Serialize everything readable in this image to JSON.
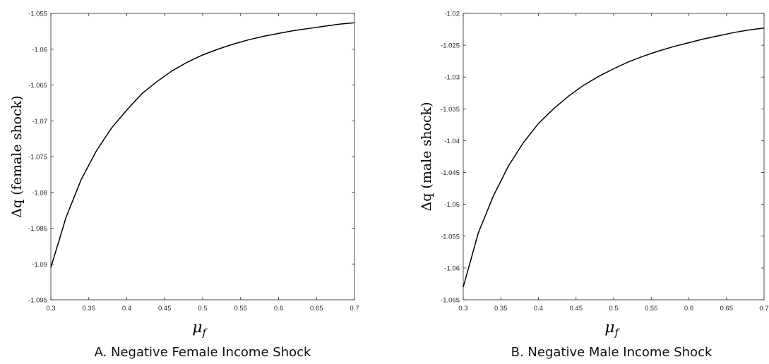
{
  "chart_data": [
    {
      "type": "line",
      "caption": "A. Negative Female Income Shock",
      "xlabel": "μ",
      "xlabel_sub": "f",
      "ylabel": "Δq (female shock)",
      "xlim": [
        0.3,
        0.7
      ],
      "ylim": [
        -1.095,
        -1.055
      ],
      "xticks": [
        0.3,
        0.35,
        0.4,
        0.45,
        0.5,
        0.55,
        0.6,
        0.65,
        0.7
      ],
      "xtick_labels": [
        "0.3",
        "0.35",
        "0.4",
        "0.45",
        "0.5",
        "0.55",
        "0.6",
        "0.65",
        "0.7"
      ],
      "yticks": [
        -1.095,
        -1.09,
        -1.085,
        -1.08,
        -1.075,
        -1.07,
        -1.065,
        -1.06,
        -1.055
      ],
      "ytick_labels": [
        "-1.095",
        "-1.09",
        "-1.085",
        "-1.08",
        "-1.075",
        "-1.07",
        "-1.065",
        "-1.06",
        "-1.055"
      ],
      "grid": false,
      "color": "#000000",
      "series": [
        {
          "x": [
            0.3,
            0.32,
            0.34,
            0.36,
            0.38,
            0.4,
            0.42,
            0.44,
            0.46,
            0.48,
            0.5,
            0.52,
            0.54,
            0.56,
            0.58,
            0.6,
            0.62,
            0.64,
            0.66,
            0.68,
            0.7
          ],
          "y": [
            -1.0905,
            -1.0835,
            -1.0782,
            -1.0742,
            -1.071,
            -1.0685,
            -1.0662,
            -1.0645,
            -1.063,
            -1.0618,
            -1.0608,
            -1.06,
            -1.0593,
            -1.0587,
            -1.0582,
            -1.0578,
            -1.0574,
            -1.0571,
            -1.0568,
            -1.0565,
            -1.0563
          ]
        }
      ]
    },
    {
      "type": "line",
      "caption": "B. Negative Male Income Shock",
      "xlabel": "μ",
      "xlabel_sub": "f",
      "ylabel": "Δq (male shock)",
      "xlim": [
        0.3,
        0.7
      ],
      "ylim": [
        -1.065,
        -1.02
      ],
      "xticks": [
        0.3,
        0.35,
        0.4,
        0.45,
        0.5,
        0.55,
        0.6,
        0.65,
        0.7
      ],
      "xtick_labels": [
        "0.3",
        "0.35",
        "0.4",
        "0.45",
        "0.5",
        "0.55",
        "0.6",
        "0.65",
        "0.7"
      ],
      "yticks": [
        -1.065,
        -1.06,
        -1.055,
        -1.05,
        -1.045,
        -1.04,
        -1.035,
        -1.03,
        -1.025,
        -1.02
      ],
      "ytick_labels": [
        "-1.065",
        "-1.06",
        "-1.055",
        "-1.05",
        "-1.045",
        "-1.04",
        "-1.035",
        "-1.03",
        "-1.025",
        "-1.02"
      ],
      "grid": false,
      "color": "#000000",
      "series": [
        {
          "x": [
            0.3,
            0.32,
            0.34,
            0.36,
            0.38,
            0.4,
            0.42,
            0.44,
            0.46,
            0.48,
            0.5,
            0.52,
            0.54,
            0.56,
            0.58,
            0.6,
            0.62,
            0.64,
            0.66,
            0.68,
            0.7
          ],
          "y": [
            -1.063,
            -1.0545,
            -1.0487,
            -1.044,
            -1.0403,
            -1.0373,
            -1.035,
            -1.033,
            -1.0313,
            -1.0299,
            -1.0287,
            -1.0276,
            -1.0267,
            -1.0259,
            -1.0252,
            -1.0246,
            -1.024,
            -1.0235,
            -1.023,
            -1.0226,
            -1.0223
          ]
        }
      ]
    }
  ]
}
